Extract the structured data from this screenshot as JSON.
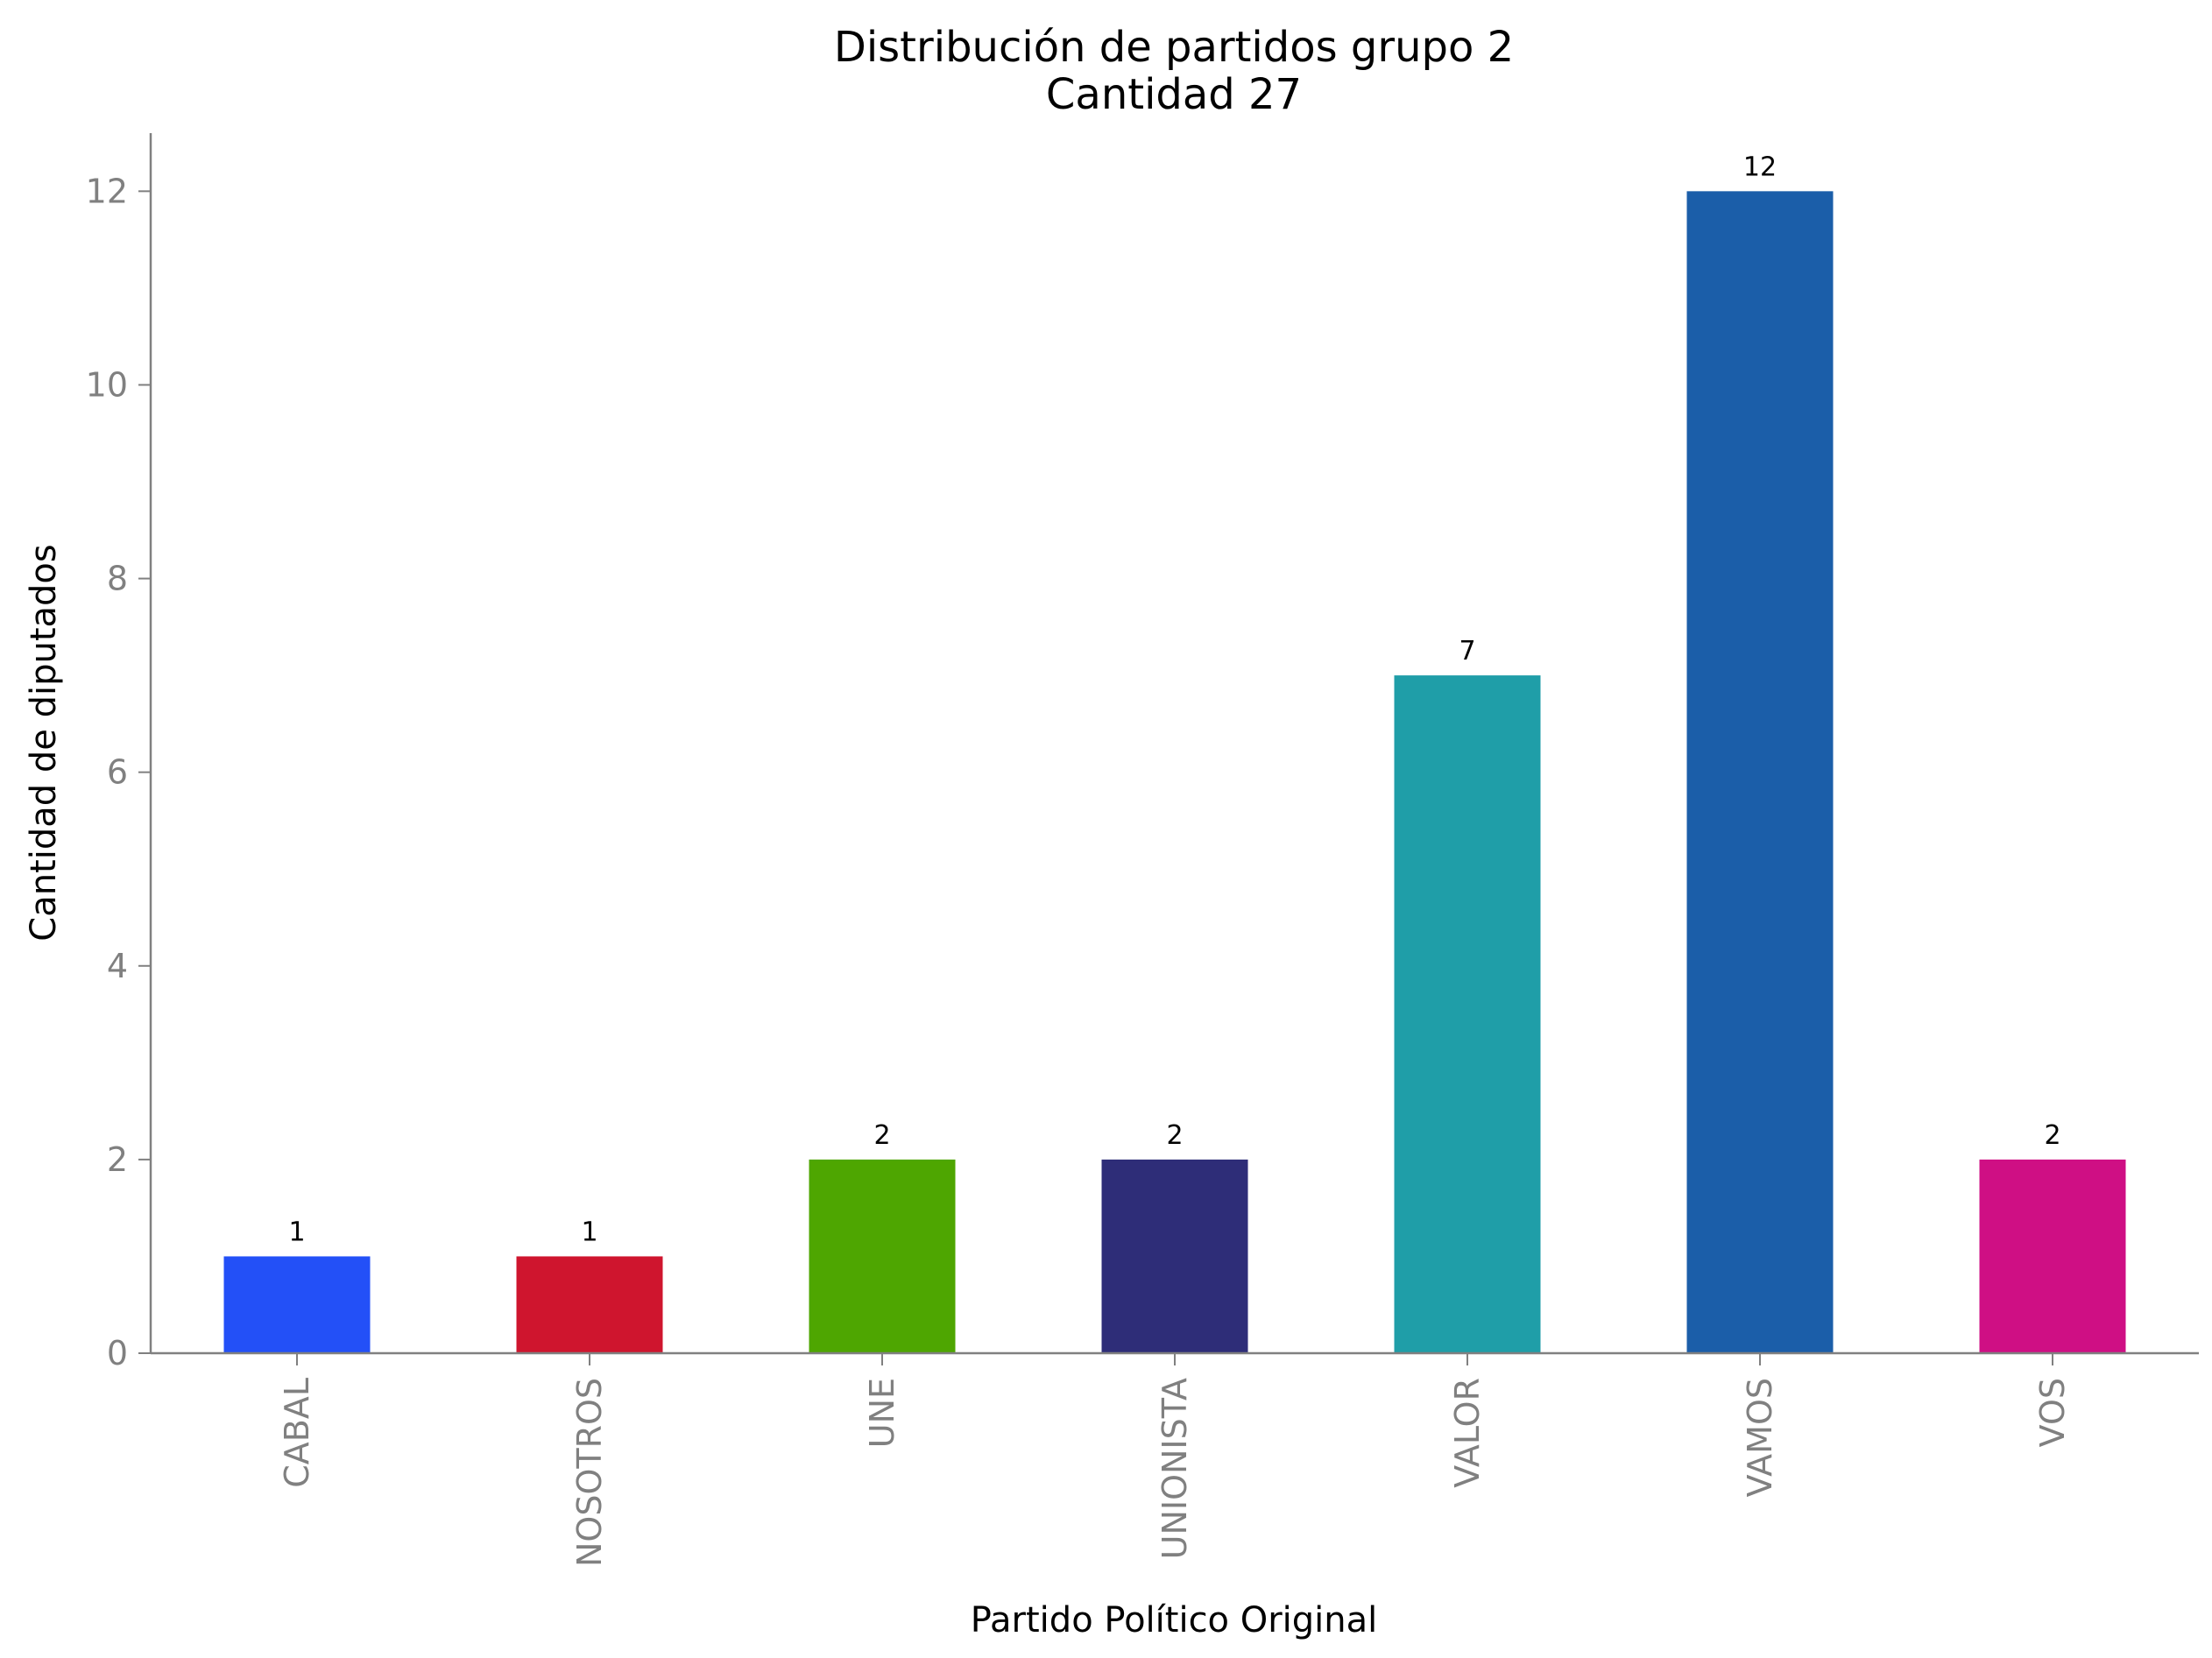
{
  "chart_data": {
    "type": "bar",
    "title": "Distribución de partidos grupo 2",
    "subtitle": "Cantidad 27",
    "xlabel": "Partido Político Original",
    "ylabel": "Cantidad de diputados",
    "categories": [
      "CABAL",
      "NOSOTROS",
      "UNE",
      "UNIONISTA",
      "VALOR",
      "VAMOS",
      "VOS"
    ],
    "values": [
      1,
      1,
      2,
      2,
      7,
      12,
      2
    ],
    "data_labels": [
      "1",
      "1",
      "2",
      "2",
      "7",
      "12",
      "2"
    ],
    "bar_colors": [
      "#2350f7",
      "#cf152e",
      "#4ea601",
      "#2e2d78",
      "#1f9ea8",
      "#1b5ea9",
      "#cf0f84"
    ],
    "ylim": [
      0,
      12.6
    ],
    "yticks": [
      0,
      2,
      4,
      6,
      8,
      10,
      12
    ],
    "grid": false,
    "legend": "none",
    "axis_color": "#808080",
    "tick_label_color": "#808080"
  }
}
